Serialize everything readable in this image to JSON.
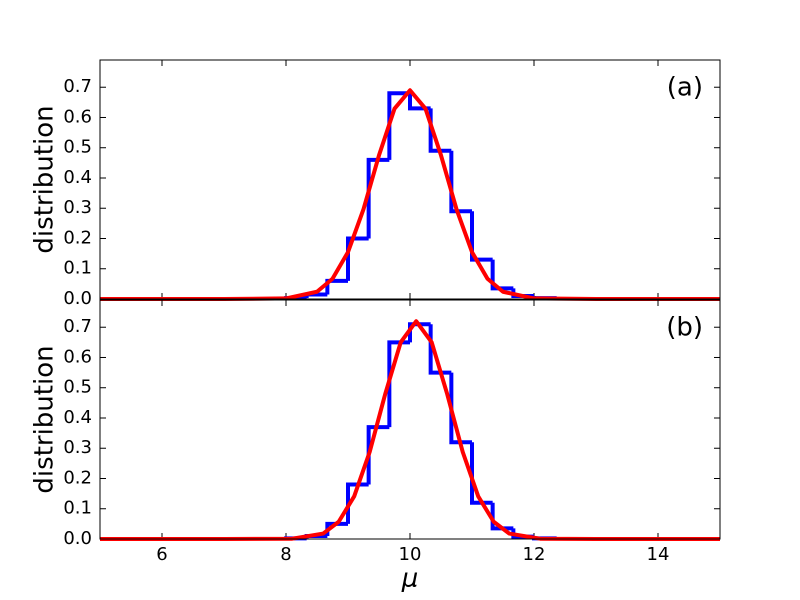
{
  "chart_data": [
    {
      "type": "histogram",
      "label": "(a)",
      "ylabel": "distribution",
      "bins": [
        8,
        8.333,
        8.667,
        9,
        9.333,
        9.667,
        10,
        10.333,
        10.667,
        11,
        11.333,
        11.667,
        12,
        12.333
      ],
      "counts": [
        0.003,
        0.015,
        0.06,
        0.2,
        0.46,
        0.68,
        0.63,
        0.49,
        0.29,
        0.13,
        0.035,
        0.01,
        0.003
      ],
      "color": "#0000ff",
      "curve": {
        "color": "#ff0000",
        "x": [
          5,
          7,
          8,
          8.5,
          8.75,
          9,
          9.25,
          9.5,
          9.75,
          10,
          10.25,
          10.5,
          10.75,
          11,
          11.25,
          11.5,
          12,
          13,
          15
        ],
        "values": [
          0,
          0,
          0.002,
          0.024,
          0.067,
          0.155,
          0.297,
          0.475,
          0.629,
          0.69,
          0.629,
          0.475,
          0.297,
          0.155,
          0.067,
          0.024,
          0.002,
          0,
          0
        ]
      },
      "xlim": [
        5,
        15
      ],
      "ylim": [
        0,
        0.79
      ],
      "yticks": [
        {
          "value": 0,
          "label": "0.0"
        },
        {
          "value": 0.1,
          "label": "0.1"
        },
        {
          "value": 0.2,
          "label": "0.2"
        },
        {
          "value": 0.3,
          "label": "0.3"
        },
        {
          "value": 0.4,
          "label": "0.4"
        },
        {
          "value": 0.5,
          "label": "0.5"
        },
        {
          "value": 0.6,
          "label": "0.6"
        },
        {
          "value": 0.7,
          "label": "0.7"
        }
      ]
    },
    {
      "type": "histogram",
      "label": "(b)",
      "ylabel": "distribution",
      "xlabel": "μ",
      "bins": [
        8,
        8.333,
        8.667,
        9,
        9.333,
        9.667,
        10,
        10.333,
        10.667,
        11,
        11.333,
        11.667,
        12,
        12.333
      ],
      "counts": [
        0.002,
        0.01,
        0.05,
        0.18,
        0.37,
        0.65,
        0.71,
        0.55,
        0.32,
        0.12,
        0.035,
        0.008,
        0.002
      ],
      "color": "#0000ff",
      "curve": {
        "color": "#ff0000",
        "x": [
          5,
          7,
          8.1,
          8.6,
          8.85,
          9.1,
          9.35,
          9.6,
          9.85,
          10.1,
          10.35,
          10.6,
          10.85,
          11.1,
          11.35,
          11.6,
          12.1,
          13,
          15
        ],
        "values": [
          0,
          0,
          0.001,
          0.018,
          0.057,
          0.141,
          0.288,
          0.479,
          0.65,
          0.72,
          0.65,
          0.479,
          0.288,
          0.141,
          0.057,
          0.018,
          0.001,
          0,
          0
        ]
      },
      "xlim": [
        5,
        15
      ],
      "ylim": [
        0,
        0.79
      ],
      "xticks": [
        6,
        8,
        10,
        12,
        14
      ],
      "yticks": [
        {
          "value": 0,
          "label": "0.0"
        },
        {
          "value": 0.1,
          "label": "0.1"
        },
        {
          "value": 0.2,
          "label": "0.2"
        },
        {
          "value": 0.3,
          "label": "0.3"
        },
        {
          "value": 0.4,
          "label": "0.4"
        },
        {
          "value": 0.5,
          "label": "0.5"
        },
        {
          "value": 0.6,
          "label": "0.6"
        },
        {
          "value": 0.7,
          "label": "0.7"
        }
      ]
    }
  ]
}
